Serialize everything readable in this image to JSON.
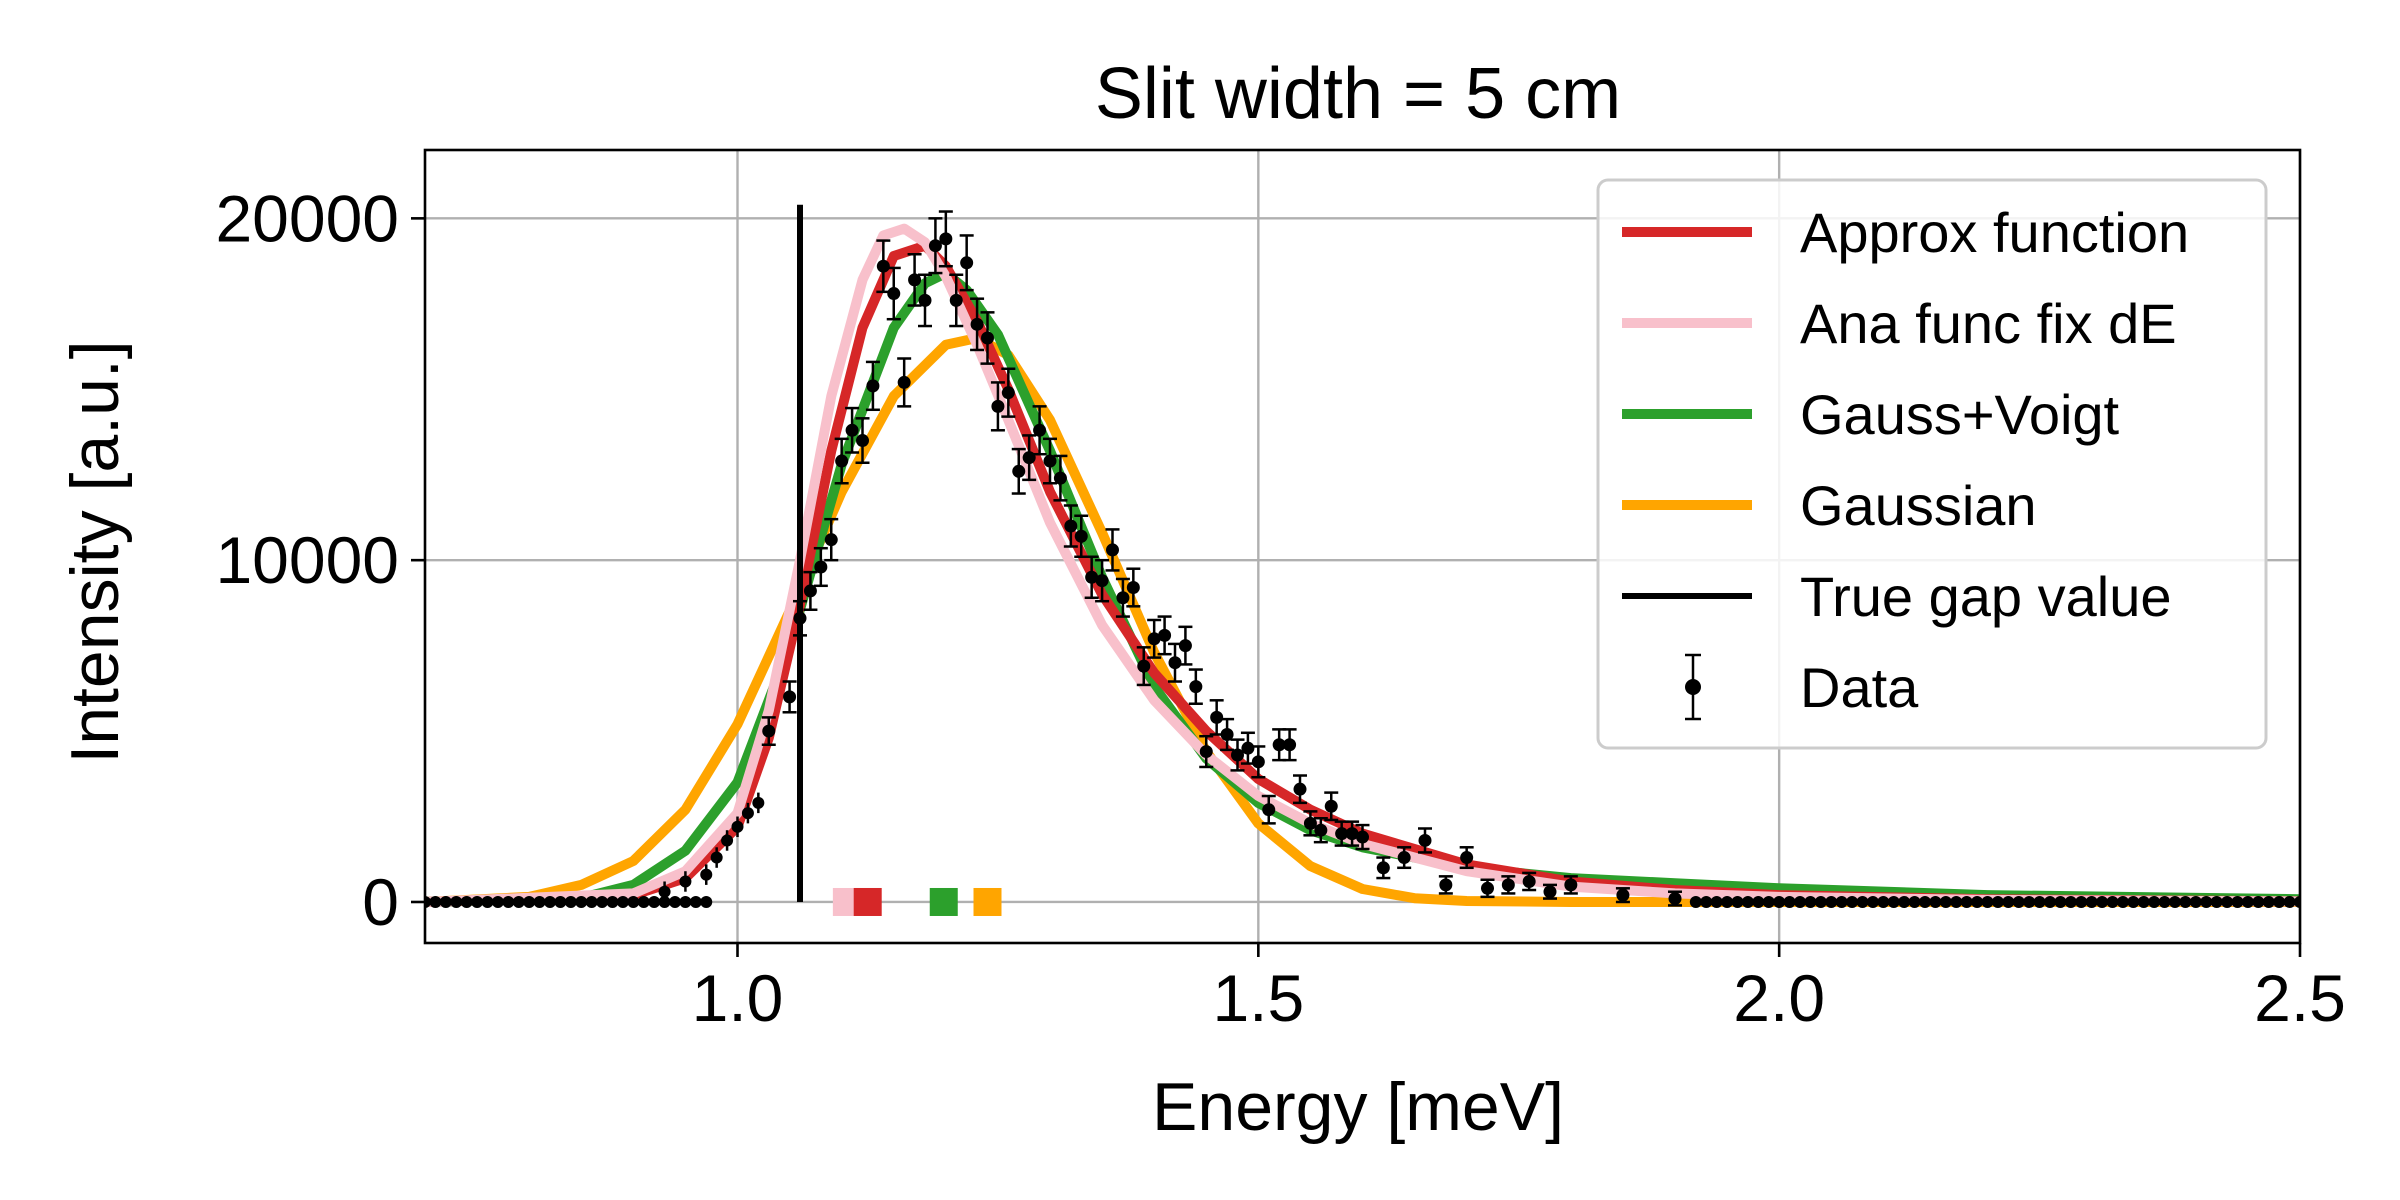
{
  "chart_data": {
    "type": "line",
    "title": "Slit width = 5 cm",
    "xlabel": "Energy [meV]",
    "ylabel": "Intensity [a.u.]",
    "xlim": [
      0.7,
      2.5
    ],
    "ylim": [
      -1200,
      22000
    ],
    "x_ticks": [
      1.0,
      1.5,
      2.0,
      2.5
    ],
    "x_tick_labels": [
      "1.0",
      "1.5",
      "2.0",
      "2.5"
    ],
    "y_ticks": [
      0,
      10000,
      20000
    ],
    "y_tick_labels": [
      "0",
      "10000",
      "20000"
    ],
    "grid": true,
    "legend_position": "top-right",
    "series": [
      {
        "name": "Approx function",
        "color": "#d62728",
        "x": [
          0.7,
          0.9,
          0.95,
          1.0,
          1.03,
          1.06,
          1.09,
          1.12,
          1.15,
          1.18,
          1.2,
          1.23,
          1.26,
          1.3,
          1.35,
          1.4,
          1.45,
          1.5,
          1.55,
          1.6,
          1.7,
          1.8,
          1.9,
          2.0,
          2.2,
          2.5
        ],
        "y": [
          0,
          200,
          700,
          2200,
          4800,
          8700,
          13200,
          16800,
          18900,
          19200,
          18600,
          17000,
          15000,
          12000,
          9000,
          6700,
          5000,
          3600,
          2700,
          2000,
          1100,
          600,
          350,
          200,
          80,
          20
        ]
      },
      {
        "name": "Ana func fix dE",
        "color": "#f8c0cb",
        "x": [
          0.7,
          0.9,
          0.95,
          1.0,
          1.03,
          1.06,
          1.09,
          1.12,
          1.14,
          1.16,
          1.18,
          1.2,
          1.23,
          1.26,
          1.3,
          1.35,
          1.4,
          1.45,
          1.5,
          1.55,
          1.6,
          1.7,
          1.8,
          1.9,
          2.0,
          2.2,
          2.5
        ],
        "y": [
          0,
          250,
          900,
          2600,
          5600,
          10000,
          14800,
          18200,
          19500,
          19700,
          19300,
          18300,
          16300,
          14100,
          11100,
          8100,
          5900,
          4300,
          3100,
          2300,
          1700,
          900,
          450,
          250,
          150,
          60,
          15
        ]
      },
      {
        "name": "Gauss+Voigt",
        "color": "#2ca02c",
        "x": [
          0.7,
          0.85,
          0.9,
          0.95,
          1.0,
          1.05,
          1.1,
          1.15,
          1.18,
          1.2,
          1.22,
          1.25,
          1.3,
          1.35,
          1.4,
          1.45,
          1.5,
          1.55,
          1.6,
          1.7,
          1.8,
          1.9,
          2.0,
          2.2,
          2.5
        ],
        "y": [
          0,
          120,
          500,
          1500,
          3500,
          7500,
          12800,
          16800,
          18100,
          18400,
          17900,
          16600,
          13200,
          9500,
          6300,
          4200,
          2900,
          2100,
          1600,
          1000,
          700,
          550,
          400,
          200,
          80
        ]
      },
      {
        "name": "Gaussian",
        "color": "#ffa500",
        "x": [
          0.7,
          0.8,
          0.85,
          0.9,
          0.95,
          1.0,
          1.05,
          1.1,
          1.15,
          1.2,
          1.23,
          1.26,
          1.3,
          1.35,
          1.4,
          1.45,
          1.5,
          1.55,
          1.6,
          1.65,
          1.7,
          1.8,
          2.0,
          2.5
        ],
        "y": [
          0,
          150,
          500,
          1200,
          2700,
          5200,
          8500,
          12000,
          14800,
          16300,
          16500,
          16000,
          14100,
          10800,
          7300,
          4400,
          2300,
          1050,
          380,
          110,
          30,
          0,
          0,
          0
        ]
      },
      {
        "name": "True gap value",
        "color": "#000000",
        "x": [
          1.06,
          1.06
        ],
        "y": [
          0,
          20400
        ]
      }
    ],
    "markers": [
      {
        "x": 1.105,
        "color": "#f8c0cb"
      },
      {
        "x": 1.125,
        "color": "#d62728"
      },
      {
        "x": 1.198,
        "color": "#2ca02c"
      },
      {
        "x": 1.24,
        "color": "#ffa500"
      }
    ],
    "data_points": {
      "name": "Data",
      "color": "#000000",
      "x": [
        1.03,
        1.05,
        1.06,
        1.07,
        1.08,
        1.09,
        1.1,
        1.11,
        1.12,
        1.13,
        1.14,
        1.15,
        1.16,
        1.17,
        1.18,
        1.19,
        1.2,
        1.21,
        1.22,
        1.23,
        1.24,
        1.25,
        1.26,
        1.27,
        1.28,
        1.29,
        1.3,
        1.31,
        1.32,
        1.33,
        1.34,
        1.35,
        1.36,
        1.37,
        1.38,
        1.39,
        1.4,
        1.41,
        1.42,
        1.43,
        1.44,
        1.45,
        1.46,
        1.47,
        1.48,
        1.49,
        1.5,
        1.51,
        1.52,
        1.53,
        1.54,
        1.55,
        1.56,
        1.57,
        1.58,
        1.59,
        1.6,
        1.62,
        1.64,
        1.66,
        1.68,
        1.7,
        1.72,
        1.74,
        1.76,
        1.78,
        1.8,
        1.85,
        1.9
      ],
      "y": [
        5000,
        6000,
        8300,
        9100,
        9800,
        10600,
        12900,
        13800,
        13500,
        15100,
        18600,
        17800,
        15200,
        18200,
        17600,
        19200,
        19400,
        17600,
        18700,
        16900,
        16500,
        14500,
        14900,
        12600,
        13000,
        13800,
        12900,
        12400,
        11000,
        10700,
        9500,
        9400,
        10300,
        8900,
        9200,
        6900,
        7700,
        7800,
        7000,
        7500,
        6300,
        4400,
        5400,
        4900,
        4300,
        4500,
        4100,
        2700,
        4600,
        4600,
        3300,
        2300,
        2100,
        2800,
        2000,
        2000,
        1900,
        1000,
        1300,
        1800,
        500,
        1300,
        400,
        500,
        600,
        300,
        500,
        200,
        100
      ],
      "err": [
        400,
        450,
        500,
        550,
        550,
        600,
        650,
        650,
        650,
        700,
        750,
        750,
        700,
        750,
        750,
        800,
        800,
        750,
        800,
        750,
        750,
        700,
        700,
        650,
        650,
        700,
        650,
        650,
        600,
        600,
        600,
        600,
        600,
        550,
        550,
        550,
        550,
        550,
        550,
        550,
        500,
        450,
        500,
        450,
        450,
        450,
        450,
        400,
        450,
        450,
        400,
        350,
        350,
        400,
        350,
        350,
        350,
        300,
        300,
        350,
        250,
        300,
        250,
        250,
        250,
        200,
        250,
        200,
        200
      ],
      "zero_x_start": 0.7,
      "zero_x_end": 2.5,
      "zero_step": 0.01
    }
  }
}
